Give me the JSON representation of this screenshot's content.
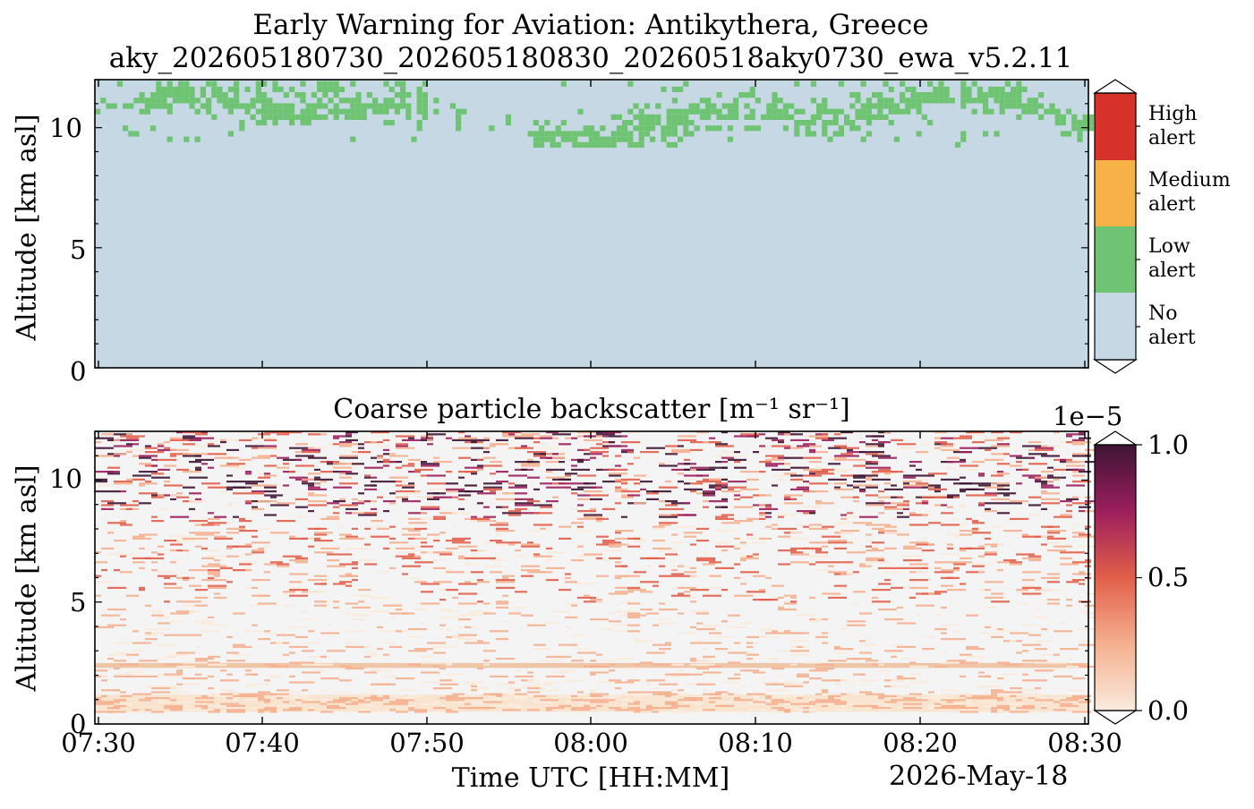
{
  "figure": {
    "title_line1": "Early Warning for Aviation: Antikythera, Greece",
    "title_line2": "aky_202605180730_202605180830_20260518aky0730_ewa_v5.2.11",
    "date_label": "2026-May-18"
  },
  "chart_data": [
    {
      "type": "heatmap",
      "title": "",
      "ylabel": "Altitude [km asl]",
      "xlabel": "",
      "x_range": [
        "07:30",
        "08:30"
      ],
      "ylim": [
        0,
        12
      ],
      "yticks": [
        "0",
        "5",
        "10"
      ],
      "colorbar": {
        "categories": [
          "No alert",
          "Low alert",
          "Medium alert",
          "High alert"
        ],
        "labels": [
          [
            "No",
            "alert"
          ],
          [
            "Low",
            "alert"
          ],
          [
            "Medium",
            "alert"
          ],
          [
            "High",
            "alert"
          ]
        ],
        "colors": [
          "#c5d8e4",
          "#6fc474",
          "#f6b247",
          "#d6322a"
        ]
      },
      "description_values": {
        "low_alert_altitude_km": [
          9.5,
          12
        ]
      }
    },
    {
      "type": "heatmap",
      "title": "Coarse particle backscatter [m⁻¹ sr⁻¹]",
      "ylabel": "Altitude [km asl]",
      "xlabel": "Time UTC [HH:MM]",
      "xticks": [
        "07:30",
        "07:40",
        "07:50",
        "08:00",
        "08:10",
        "08:20",
        "08:30"
      ],
      "yticks": [
        "0",
        "5",
        "10"
      ],
      "ylim": [
        0,
        12
      ],
      "colorbar": {
        "scale_label": "1e−5",
        "ticks": [
          "0.0",
          "0.5",
          "1.0"
        ],
        "range": [
          0,
          1e-05
        ],
        "colors": [
          "#faebdd",
          "#f5b08f",
          "#e25f4a",
          "#9c1f5d",
          "#3d1434"
        ]
      },
      "layers": [
        {
          "altitude_km": [
            0.5,
            1.2
          ],
          "level": 0.08
        },
        {
          "altitude_km": [
            2.3,
            2.5
          ],
          "level": 0.3
        }
      ]
    }
  ]
}
